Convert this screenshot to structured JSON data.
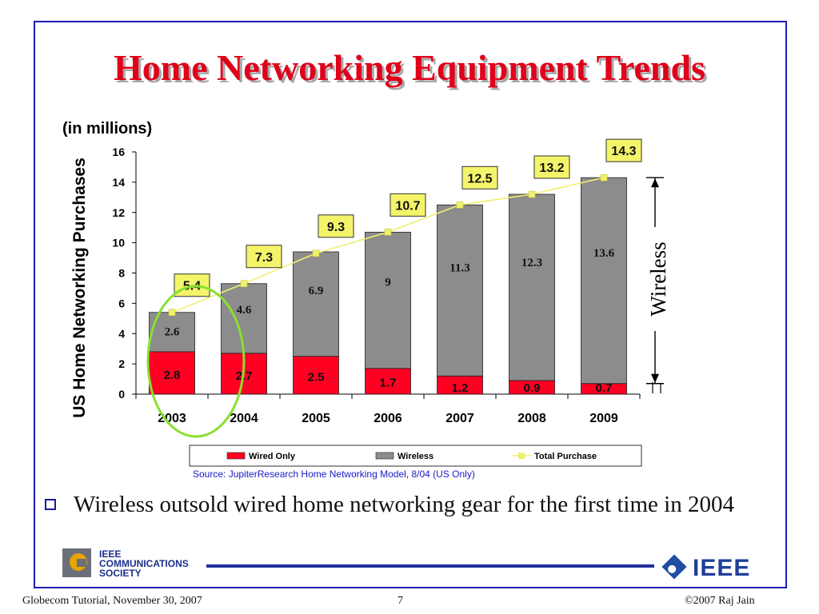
{
  "title": "Home Networking Equipment Trends",
  "bullet": "Wireless outsold wired home networking gear for the first time in 2004",
  "logos": {
    "comsoc_line1": "IEEE",
    "comsoc_line2": "COMMUNICATIONS",
    "comsoc_line3": "SOCIETY",
    "ieee": "IEEE"
  },
  "footer": {
    "left": "Globecom Tutorial, November 30, 2007",
    "center": "7",
    "right": "©2007 Raj Jain"
  },
  "colors": {
    "title": "#e0001a",
    "wired": "#ff0022",
    "wireless": "#8c8c8c",
    "total_line": "#f0f070",
    "total_label_bg": "#f4f46a",
    "highlight_circle": "#88e030",
    "frame": "#1f1fb0"
  },
  "chart_data": {
    "type": "bar",
    "stacked": true,
    "units_note": "(in millions)",
    "ylabel": "US Home Networking Purchases",
    "xlabel": "",
    "ylim": [
      0,
      16
    ],
    "yticks": [
      0,
      2,
      4,
      6,
      8,
      10,
      12,
      14,
      16
    ],
    "categories": [
      "2003",
      "2004",
      "2005",
      "2006",
      "2007",
      "2008",
      "2009"
    ],
    "series": [
      {
        "name": "Wired Only",
        "values": [
          2.8,
          2.7,
          2.5,
          1.7,
          1.2,
          0.9,
          0.7
        ],
        "labels": [
          "2.8",
          "2.7",
          "2.5",
          "1.7",
          "1.2",
          "0.9",
          "0.7"
        ]
      },
      {
        "name": "Wireless",
        "values": [
          2.6,
          4.6,
          6.9,
          9,
          11.3,
          12.3,
          13.6
        ],
        "labels": [
          "2.6",
          "4.6",
          "6.9",
          "9",
          "11.3",
          "12.3",
          "13.6"
        ]
      },
      {
        "name": "Total Purchase",
        "type": "line",
        "values": [
          5.4,
          7.3,
          9.3,
          10.7,
          12.5,
          13.2,
          14.3
        ],
        "labels": [
          "5.4",
          "7.3",
          "9.3",
          "10.7",
          "12.5",
          "13.2",
          "14.3"
        ]
      }
    ],
    "legend": [
      "Wired Only",
      "Wireless",
      "Total Purchase"
    ],
    "legend_position": "bottom",
    "annotation_bracket": "Wireless",
    "highlight": "2003",
    "source": "Source: JupiterResearch Home Networking Model, 8/04 (US Only)",
    "grid": false
  }
}
